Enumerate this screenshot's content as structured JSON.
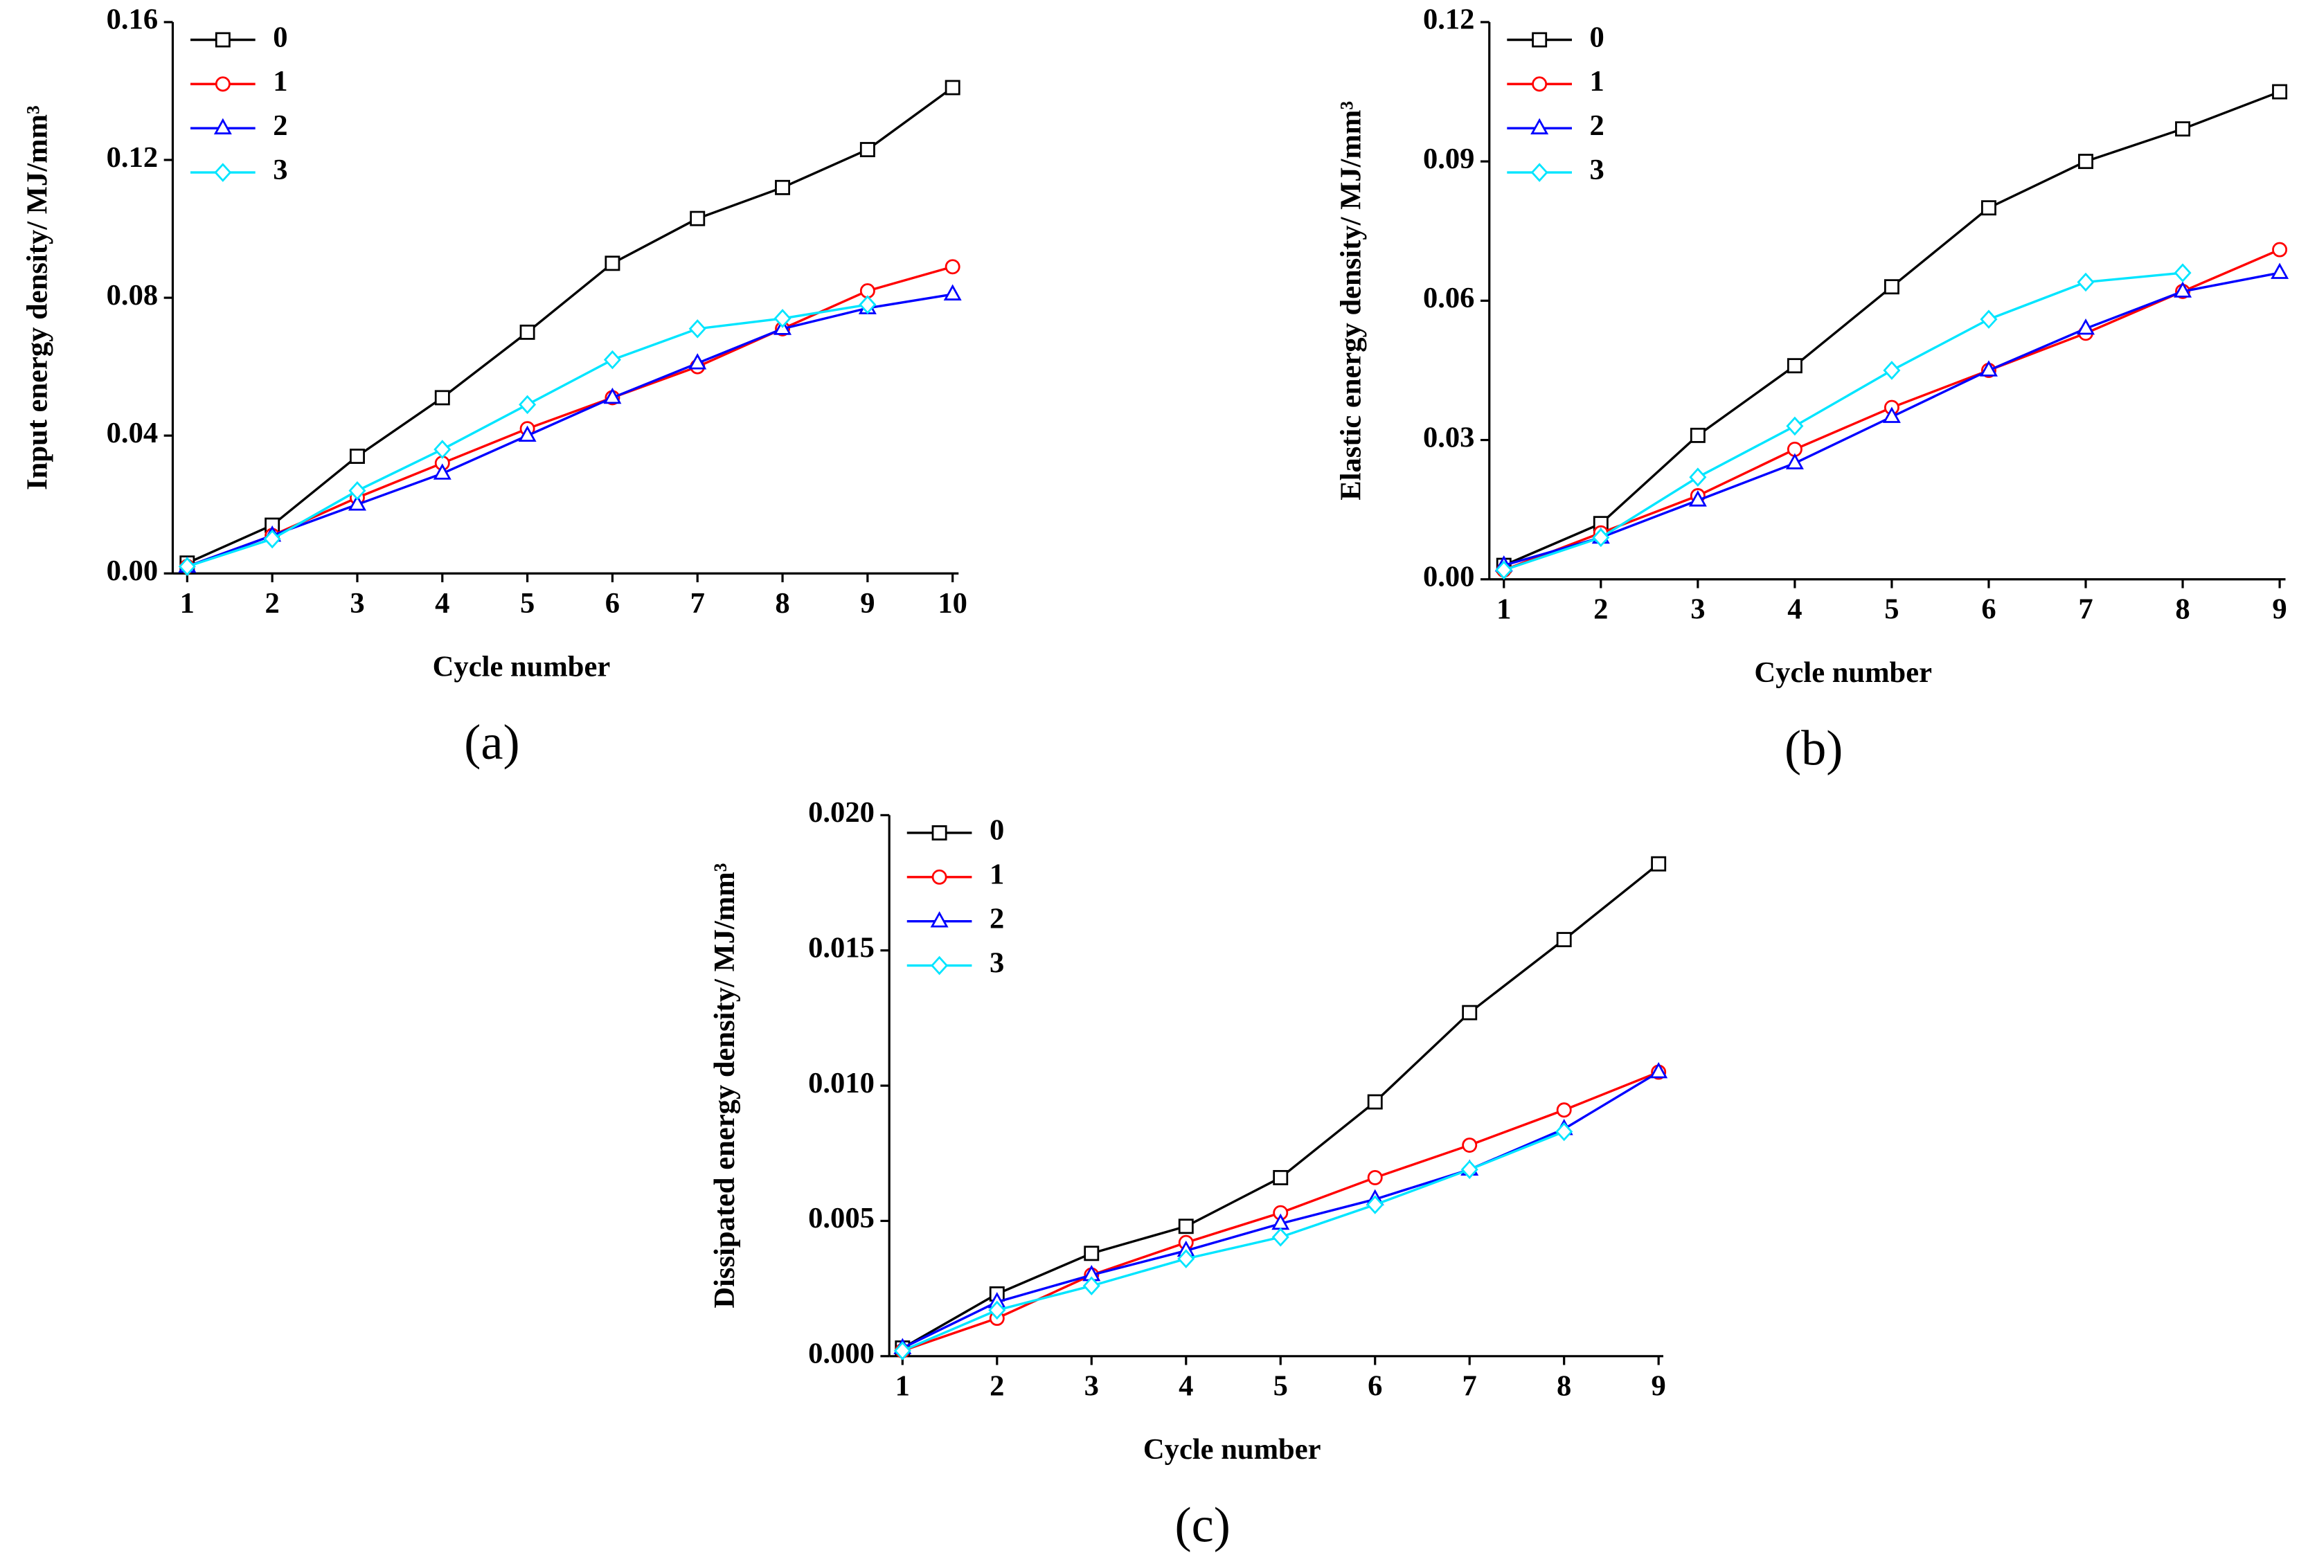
{
  "chart_data": [
    {
      "type": "line",
      "panel": "(a)",
      "xlabel": "Cycle number",
      "ylabel": "Input energy density/ MJ/mm³",
      "x": [
        1,
        2,
        3,
        4,
        5,
        6,
        7,
        8,
        9,
        10
      ],
      "xlim": [
        0.83,
        10.07
      ],
      "xticks": [
        1,
        2,
        3,
        4,
        5,
        6,
        7,
        8,
        9,
        10
      ],
      "ylim": [
        0,
        0.16
      ],
      "yticks": [
        {
          "value": 0,
          "label": "0.00"
        },
        0.04,
        0.08,
        0.12,
        0.16
      ],
      "legend": "top-left",
      "series": [
        {
          "name": "0",
          "color": "#000000",
          "marker": "square",
          "values": [
            0.003,
            0.014,
            0.034,
            0.051,
            0.07,
            0.09,
            0.103,
            0.112,
            0.123,
            0.141
          ]
        },
        {
          "name": "1",
          "color": "#ff0000",
          "marker": "circle",
          "values": [
            0.002,
            0.011,
            0.022,
            0.032,
            0.042,
            0.051,
            0.06,
            0.071,
            0.082,
            0.089
          ]
        },
        {
          "name": "2",
          "color": "#0000ff",
          "marker": "triangle",
          "values": [
            0.002,
            0.011,
            0.02,
            0.029,
            0.04,
            0.051,
            0.061,
            0.071,
            0.077,
            0.081
          ]
        },
        {
          "name": "3",
          "color": "#00e5ff",
          "marker": "diamond",
          "values": [
            0.002,
            0.01,
            0.024,
            0.036,
            0.049,
            0.062,
            0.071,
            0.074,
            0.078,
            null
          ]
        }
      ]
    },
    {
      "type": "line",
      "panel": "(b)",
      "xlabel": "Cycle number",
      "ylabel": "Elastic energy density/ MJ/mm³",
      "x": [
        1,
        2,
        3,
        4,
        5,
        6,
        7,
        8,
        9
      ],
      "xlim": [
        0.85,
        9.06
      ],
      "xticks": [
        1,
        2,
        3,
        4,
        5,
        6,
        7,
        8,
        9
      ],
      "ylim": [
        0,
        0.12
      ],
      "yticks": [
        {
          "value": 0,
          "label": "0.00"
        },
        0.03,
        0.06,
        0.09,
        0.12
      ],
      "legend": "top-left",
      "series": [
        {
          "name": "0",
          "color": "#000000",
          "marker": "square",
          "values": [
            0.003,
            0.012,
            0.031,
            0.046,
            0.063,
            0.08,
            0.09,
            0.097,
            0.105
          ]
        },
        {
          "name": "1",
          "color": "#ff0000",
          "marker": "circle",
          "values": [
            0.002,
            0.01,
            0.018,
            0.028,
            0.037,
            0.045,
            0.053,
            0.062,
            0.071
          ]
        },
        {
          "name": "2",
          "color": "#0000ff",
          "marker": "triangle",
          "values": [
            0.003,
            0.009,
            0.017,
            0.025,
            0.035,
            0.045,
            0.054,
            0.062,
            0.066
          ]
        },
        {
          "name": "3",
          "color": "#00e5ff",
          "marker": "diamond",
          "values": [
            0.002,
            0.009,
            0.022,
            0.033,
            0.045,
            0.056,
            0.064,
            0.066,
            null
          ]
        }
      ]
    },
    {
      "type": "line",
      "panel": "(c)",
      "xlabel": "Cycle number",
      "ylabel": "Dissipated energy density/ MJ/mm³",
      "x": [
        1,
        2,
        3,
        4,
        5,
        6,
        7,
        8,
        9
      ],
      "xlim": [
        0.86,
        9.05
      ],
      "xticks": [
        1,
        2,
        3,
        4,
        5,
        6,
        7,
        8,
        9
      ],
      "ylim": [
        0,
        0.02
      ],
      "yticks": [
        {
          "value": 0,
          "label": "0.000"
        },
        0.005,
        {
          "value": 0.01,
          "label": "0.010"
        },
        0.015,
        {
          "value": 0.02,
          "label": "0.020"
        }
      ],
      "legend": "top-left",
      "series": [
        {
          "name": "0",
          "color": "#000000",
          "marker": "square",
          "values": [
            0.0003,
            0.0023,
            0.0038,
            0.0048,
            0.0066,
            0.0094,
            0.0127,
            0.0154,
            0.0182
          ]
        },
        {
          "name": "1",
          "color": "#ff0000",
          "marker": "circle",
          "values": [
            0.0002,
            0.0014,
            0.003,
            0.0042,
            0.0053,
            0.0066,
            0.0078,
            0.0091,
            0.0105
          ]
        },
        {
          "name": "2",
          "color": "#0000ff",
          "marker": "triangle",
          "values": [
            0.0003,
            0.002,
            0.003,
            0.0039,
            0.0049,
            0.0058,
            0.0069,
            0.0084,
            0.0105
          ]
        },
        {
          "name": "3",
          "color": "#00e5ff",
          "marker": "diamond",
          "values": [
            0.0002,
            0.0017,
            0.0026,
            0.0036,
            0.0044,
            0.0056,
            0.0069,
            0.0083,
            null
          ]
        }
      ]
    }
  ]
}
